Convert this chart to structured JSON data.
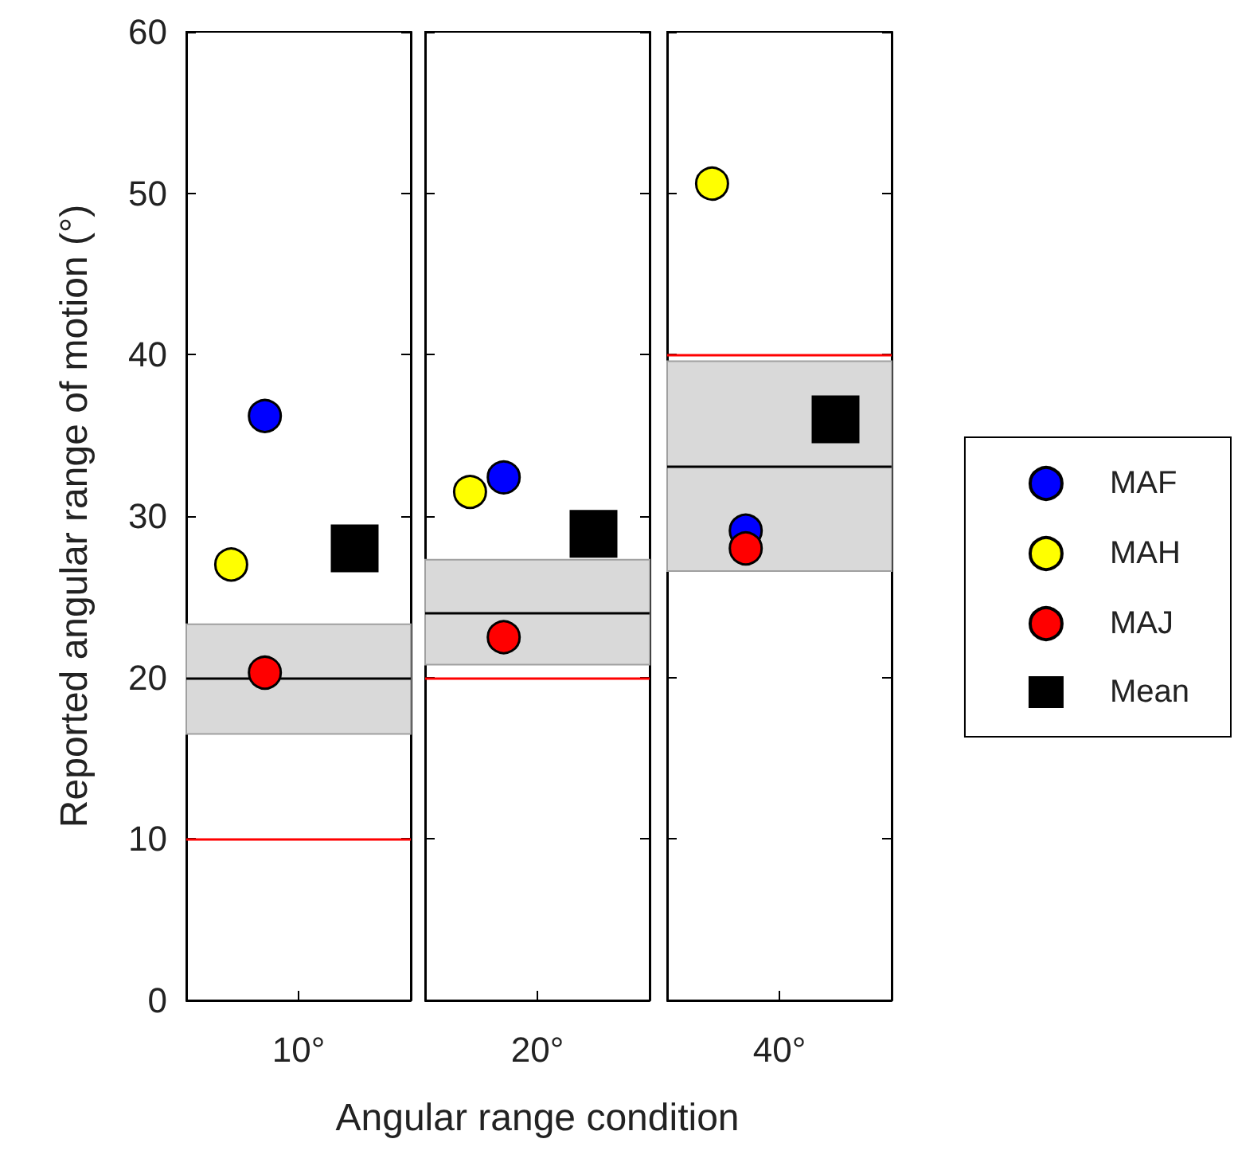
{
  "chart_data": [
    {
      "type": "scatter",
      "ylabel": "Reported angular range of motion (°)",
      "categories": [
        "10°"
      ],
      "ylim": [
        0,
        60
      ],
      "yticks": [
        0,
        10,
        20,
        30,
        40,
        50,
        60
      ],
      "series": [
        {
          "color": "#0000ff",
          "marker": "circle",
          "values": [
            36.2
          ]
        },
        {
          "color": "#ffff00",
          "marker": "circle",
          "values": [
            27
          ]
        },
        {
          "color": "#ff0000",
          "marker": "circle",
          "values": [
            20.3
          ]
        },
        {
          "color": "#000000",
          "marker": "square",
          "values": [
            28
          ]
        }
      ],
      "bands": [
        {
          "axis": "y",
          "from": 16.5,
          "to": 23.3,
          "color": "#d9d9d9"
        }
      ],
      "ref_lines": [
        {
          "axis": "y",
          "value": 20,
          "color": "#000000"
        },
        {
          "axis": "y",
          "value": 10,
          "color": "#ff0000"
        }
      ],
      "grid": false,
      "legend": false
    },
    {
      "type": "scatter",
      "xlabel": "Angular range condition",
      "categories": [
        "20°"
      ],
      "ylim": [
        0,
        60
      ],
      "yticks": [
        0,
        10,
        20,
        30,
        40,
        50,
        60
      ],
      "tick_labels": "x",
      "series": [
        {
          "color": "#0000ff",
          "marker": "circle",
          "values": [
            32.4
          ]
        },
        {
          "color": "#ffff00",
          "marker": "circle",
          "values": [
            31.5
          ]
        },
        {
          "color": "#ff0000",
          "marker": "circle",
          "values": [
            22.5
          ]
        },
        {
          "color": "#000000",
          "marker": "square",
          "values": [
            28.9
          ]
        }
      ],
      "bands": [
        {
          "axis": "y",
          "from": 20.8,
          "to": 27.3,
          "color": "#d9d9d9"
        }
      ],
      "ref_lines": [
        {
          "axis": "y",
          "value": 24,
          "color": "#000000"
        },
        {
          "axis": "y",
          "value": 20,
          "color": "#ff0000"
        }
      ],
      "grid": false,
      "legend": false
    },
    {
      "type": "scatter",
      "categories": [
        "40°"
      ],
      "ylim": [
        0,
        60
      ],
      "yticks": [
        0,
        10,
        20,
        30,
        40,
        50,
        60
      ],
      "tick_labels": "x",
      "series": [
        {
          "name": "MAF",
          "color": "#0000ff",
          "marker": "circle",
          "values": [
            29.1
          ]
        },
        {
          "name": "MAH",
          "color": "#ffff00",
          "marker": "circle",
          "values": [
            50.6
          ]
        },
        {
          "name": "MAJ",
          "color": "#ff0000",
          "marker": "circle",
          "values": [
            28
          ]
        },
        {
          "name": "Mean",
          "color": "#000000",
          "marker": "square",
          "values": [
            36
          ]
        }
      ],
      "bands": [
        {
          "axis": "y",
          "from": 26.6,
          "to": 39.6,
          "color": "#d9d9d9"
        }
      ],
      "ref_lines": [
        {
          "axis": "y",
          "value": 33.1,
          "color": "#000000"
        },
        {
          "axis": "y",
          "value": 40,
          "color": "#ff0000"
        }
      ],
      "grid": false,
      "legend": "right"
    }
  ]
}
